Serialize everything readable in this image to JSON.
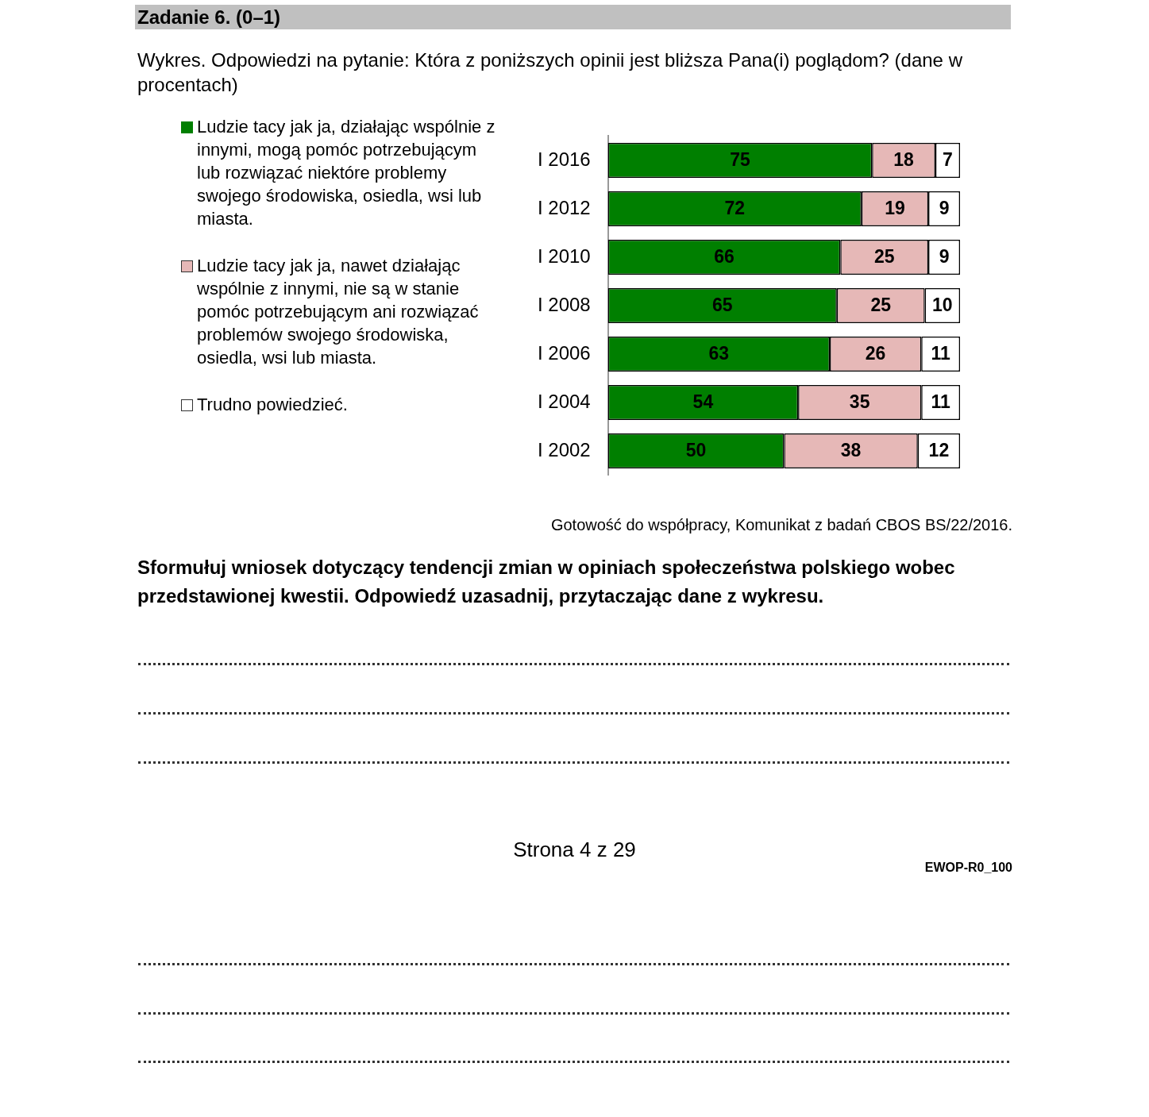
{
  "chart_data": {
    "type": "bar",
    "orientation": "horizontal",
    "stacked": true,
    "title": "Zadanie 6. (0–1)",
    "subtitle": "Wykres. Odpowiedzi na pytanie: Która z poniższych opinii jest bliższa Pana(i) poglądom? (dane w procentach)",
    "categories": [
      "I 2016",
      "I 2012",
      "I 2010",
      "I 2008",
      "I 2006",
      "I 2004",
      "I 2002"
    ],
    "series": [
      {
        "name": "Ludzie tacy jak ja, działając wspólnie z innymi, mogą pomóc potrzebującym lub rozwiązać niektóre problemy swojego środowiska, osiedla, wsi lub miasta.",
        "color": "#007f00",
        "values": [
          75,
          72,
          66,
          65,
          63,
          54,
          50
        ]
      },
      {
        "name": "Ludzie tacy jak ja, nawet działając wspólnie z innymi, nie są w stanie pomóc potrzebującym ani rozwiązać problemów swojego środowiska, osiedla, wsi lub miasta.",
        "color": "#e6b8b7",
        "values": [
          18,
          19,
          25,
          25,
          26,
          35,
          38
        ]
      },
      {
        "name": "Trudno powiedzieć.",
        "color": "#ffffff",
        "values": [
          7,
          9,
          9,
          10,
          11,
          11,
          12
        ]
      }
    ],
    "xlim": [
      0,
      100
    ],
    "data_labels": true,
    "legend": "left",
    "tick_labels": "y",
    "annotations": [
      "Gotowość do współpracy, Komunikat z badań CBOS BS/22/2016.",
      "Sformułuj wniosek dotyczący tendencji zmian w opiniach społeczeństwa polskiego wobec przedstawionej kwestii. Odpowiedź uzasadnij, przytaczając dane z wykresu.",
      "Strona 4 z 29",
      "EWOP-R0_100"
    ]
  }
}
